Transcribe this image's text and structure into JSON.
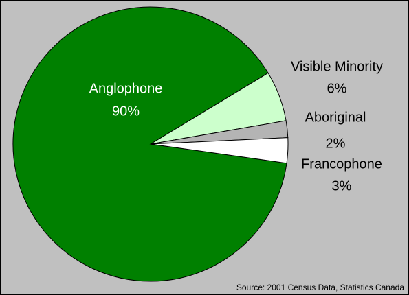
{
  "chart_data": {
    "type": "pie",
    "categories": [
      "Anglophone",
      "Visible Minority",
      "Aboriginal",
      "Francophone"
    ],
    "values": [
      90,
      6,
      2,
      3
    ],
    "value_labels": [
      "90%",
      "6%",
      "2%",
      "3%"
    ],
    "colors": [
      "#008000",
      "#ccffcc",
      "#b4b4b4",
      "#ffffff"
    ],
    "source": "Source: 2001 Census  Data, Statistics Canada"
  }
}
